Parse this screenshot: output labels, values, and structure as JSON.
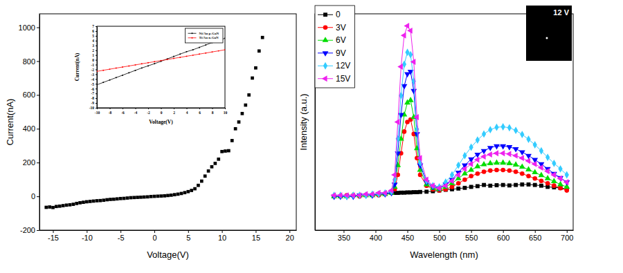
{
  "chart_data": [
    {
      "type": "scatter",
      "x_label": "Voltage(V)",
      "y_label": "Current(nA)",
      "x": [
        -16,
        -15.5,
        -15,
        -14.5,
        -14,
        -13.5,
        -13,
        -12.5,
        -12,
        -11.5,
        -11,
        -10.5,
        -10,
        -9.5,
        -9,
        -8.5,
        -8,
        -7.5,
        -7,
        -6.5,
        -6,
        -5.5,
        -5,
        -4.5,
        -4,
        -3.5,
        -3,
        -2.5,
        -2,
        -1.5,
        -1,
        -0.5,
        0,
        0.5,
        1,
        1.5,
        2,
        2.5,
        3,
        3.5,
        4,
        4.5,
        5,
        5.5,
        6,
        6.5,
        7,
        7.5,
        8,
        8.5,
        9,
        9.5,
        10,
        10.5,
        11,
        11.5,
        12,
        12.5,
        13,
        13.5,
        14,
        14.5,
        15,
        15.5,
        16
      ],
      "series": [
        {
          "color": "#000000",
          "marker": "square",
          "line_style": "none",
          "values": [
            -65,
            -63,
            -66,
            -60,
            -58,
            -55,
            -52,
            -50,
            -47,
            -42,
            -38,
            -35,
            -32,
            -30,
            -28,
            -26,
            -25,
            -23,
            -20,
            -18,
            -17,
            -15,
            -13,
            -12,
            -10,
            -8,
            -7,
            -6,
            -5,
            -4,
            -3,
            -1,
            0,
            1,
            2,
            3,
            5,
            7,
            10,
            13,
            17,
            22,
            28,
            35,
            45,
            65,
            90,
            120,
            150,
            175,
            195,
            220,
            265,
            268,
            270,
            330,
            400,
            440,
            490,
            540,
            600,
            700,
            760,
            860,
            940
          ]
        }
      ],
      "xlim": [
        -17,
        21
      ],
      "xticks": [
        -15,
        -10,
        -5,
        0,
        5,
        10,
        15,
        20
      ],
      "ylim": [
        -200,
        1080
      ],
      "yticks": [
        -200,
        0,
        200,
        400,
        600,
        800,
        1000
      ],
      "grid": false
    },
    {
      "type": "line",
      "x_label": "Voltage(V)",
      "y_label": "Current(nA)",
      "x": [
        -10,
        -9,
        -8,
        -7,
        -6,
        -5,
        -4,
        -3,
        -2,
        -1,
        0,
        1,
        2,
        3,
        4,
        5,
        6,
        7,
        8,
        9,
        10
      ],
      "series": [
        {
          "name": "Ni/Au p-GaN",
          "color": "#000000",
          "marker": "square",
          "line_style": "solid",
          "values": [
            -5.2,
            -4.7,
            -4.2,
            -3.7,
            -3.2,
            -2.7,
            -2.2,
            -1.7,
            -1.25,
            -0.8,
            -0.3,
            0.2,
            0.7,
            1.2,
            1.7,
            2.1,
            2.6,
            3.1,
            3.6,
            4.05,
            4.5
          ]
        },
        {
          "name": "Ti/Au n-GaN",
          "color": "#ff0000",
          "marker": "circle",
          "line_style": "solid",
          "values": [
            -2.4,
            -2.17,
            -1.95,
            -1.72,
            -1.5,
            -1.28,
            -1.05,
            -0.83,
            -0.6,
            -0.38,
            -0.15,
            0.07,
            0.3,
            0.52,
            0.75,
            0.97,
            1.2,
            1.42,
            1.65,
            1.87,
            2.1
          ]
        }
      ],
      "xlim": [
        -10,
        10
      ],
      "xticks": [
        -10,
        -8,
        -6,
        -4,
        -2,
        0,
        2,
        4,
        6,
        8,
        10
      ],
      "ylim": [
        -10,
        7
      ],
      "yticks": [
        -10,
        -9,
        -8,
        -7,
        -6,
        -5,
        -4,
        -3,
        -2,
        -1,
        0,
        1,
        2,
        3,
        4,
        5,
        6,
        7
      ],
      "legend": "upper right",
      "grid": false
    },
    {
      "type": "line",
      "x_label": "Wavelength (nm)",
      "y_label": "Intensity (a.u.)",
      "annotations": [
        "12 V"
      ],
      "x": [
        335,
        345,
        355,
        365,
        375,
        385,
        395,
        405,
        415,
        425,
        430,
        435,
        440,
        445,
        450,
        455,
        460,
        465,
        470,
        480,
        490,
        500,
        510,
        520,
        530,
        540,
        550,
        560,
        570,
        580,
        590,
        600,
        610,
        620,
        630,
        640,
        650,
        660,
        670,
        680,
        690,
        700
      ],
      "series": [
        {
          "name": "0",
          "color": "#000000",
          "marker": "square",
          "line_style": "solid",
          "values": [
            null,
            null,
            null,
            null,
            null,
            null,
            null,
            null,
            null,
            null,
            25.5,
            25.5,
            25.6,
            25.6,
            25.7,
            25.7,
            25.8,
            25.8,
            25.9,
            26,
            26.2,
            26.5,
            26.8,
            27,
            27.3,
            27.6,
            28,
            28.3,
            28.8,
            28.5,
            28.7,
            28.8,
            28.6,
            28.8,
            29,
            29,
            28.8,
            28.5,
            28,
            27.8,
            27.5,
            27.2
          ]
        },
        {
          "name": "3V",
          "color": "#ff0000",
          "marker": "circle",
          "line_style": "solid",
          "values": [
            24,
            24,
            24.5,
            24.5,
            24,
            24.5,
            24.5,
            24.5,
            25,
            25.5,
            27,
            33,
            42,
            51,
            55,
            56,
            50,
            40,
            33,
            28.5,
            27,
            26.5,
            27,
            28,
            29.5,
            31,
            32.5,
            33.5,
            34.3,
            34.8,
            35,
            35,
            34.8,
            34.3,
            33.5,
            32.5,
            31.5,
            30.5,
            29.5,
            28.5,
            27.5,
            26.5
          ]
        },
        {
          "name": "6V",
          "color": "#00dd00",
          "marker": "triangle-up",
          "line_style": "solid",
          "values": [
            24,
            24,
            24,
            24.5,
            24.5,
            24.5,
            24.5,
            25,
            25,
            25.5,
            28,
            37,
            48,
            58,
            63,
            64,
            57,
            44,
            35,
            29,
            27.5,
            27,
            28,
            29.5,
            31.5,
            33.5,
            35,
            36.5,
            37.3,
            37.8,
            38,
            38,
            37.8,
            37.2,
            36.3,
            35.2,
            34,
            32.8,
            31.5,
            30.3,
            29,
            28
          ]
        },
        {
          "name": "9V",
          "color": "#0000ff",
          "marker": "triangle-down",
          "line_style": "solid",
          "values": [
            24,
            24,
            24,
            24,
            24.5,
            24.5,
            24.5,
            25,
            25,
            25.5,
            29,
            42,
            58,
            70,
            75,
            76,
            68,
            50,
            37,
            30,
            28,
            27.5,
            29,
            31,
            34,
            37,
            39.5,
            41.5,
            43,
            44.3,
            45,
            45,
            44.6,
            43.8,
            42.5,
            41,
            39.3,
            37.5,
            35.5,
            33.5,
            31.8,
            30
          ]
        },
        {
          "name": "12V",
          "color": "#33ccff",
          "marker": "diamond",
          "line_style": "solid",
          "values": [
            24.5,
            24.5,
            24,
            24.5,
            24.5,
            24.5,
            25,
            25,
            25.5,
            26,
            31,
            48,
            66,
            79,
            84,
            83,
            72,
            52,
            38,
            30.5,
            28.5,
            28,
            30,
            33,
            37,
            41,
            44.5,
            47.5,
            50,
            51.8,
            52.8,
            53,
            52.6,
            51.5,
            49.8,
            47.8,
            45.5,
            43,
            40.3,
            37.8,
            35.5,
            33
          ]
        },
        {
          "name": "15V",
          "color": "#ee22ee",
          "marker": "triangle-left",
          "line_style": "solid",
          "values": [
            24.5,
            24.5,
            24.5,
            24.5,
            24.5,
            25,
            25,
            25.5,
            25.5,
            26.5,
            33,
            55,
            78,
            91,
            95,
            93,
            80,
            57,
            40,
            31,
            28.5,
            27.5,
            28.5,
            30.5,
            33,
            35.5,
            37.5,
            39.3,
            40.6,
            41.5,
            42,
            42,
            41.7,
            41,
            40,
            38.8,
            37.5,
            36,
            34.5,
            33,
            31.5,
            30
          ]
        }
      ],
      "xlim": [
        305,
        710
      ],
      "xticks": [
        350,
        400,
        450,
        500,
        550,
        600,
        650,
        700
      ],
      "ylim": [
        10,
        100
      ],
      "tick_labels": "x",
      "legend": "upper left",
      "grid": false
    }
  ]
}
